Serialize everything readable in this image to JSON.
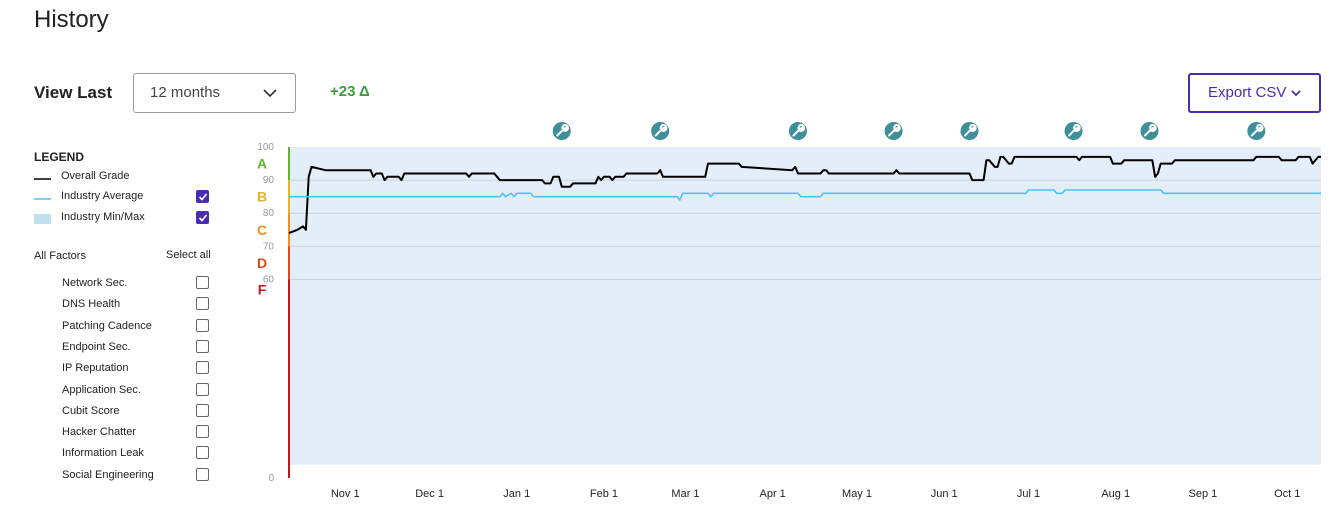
{
  "page": {
    "title": "History"
  },
  "controls": {
    "view_last_label": "View Last",
    "period_value": "12 months",
    "score_delta": "+23 Δ",
    "export_label": "Export CSV"
  },
  "legend": {
    "title": "LEGEND",
    "items": [
      {
        "label": "Overall Grade",
        "color": "#000000",
        "checkbox": null
      },
      {
        "label": "Industry Average",
        "color": "#4fc3f7",
        "checkbox": true
      },
      {
        "label": "Industry Min/Max",
        "color": "#bfe0ef",
        "checkbox": true
      }
    ]
  },
  "factors": {
    "header": "All Factors",
    "select_all": "Select all",
    "items": [
      "Network Sec.",
      "DNS Health",
      "Patching Cadence",
      "Endpoint Sec.",
      "IP Reputation",
      "Application Sec.",
      "Cubit Score",
      "Hacker Chatter",
      "Information Leak",
      "Social Engineering"
    ]
  },
  "chart_data": {
    "type": "line",
    "y_ticks": [
      100,
      90,
      80,
      70,
      60,
      0
    ],
    "ylim": [
      0,
      100
    ],
    "x_start": "2023-10-12",
    "x_end": "2024-10-13",
    "x_tick_labels": [
      "Nov 1",
      "Dec 1",
      "Jan 1",
      "Feb 1",
      "Mar 1",
      "Apr 1",
      "May 1",
      "Jun 1",
      "Jul 1",
      "Aug 1",
      "Sep 1",
      "Oct 1"
    ],
    "x_tick_dates": [
      "2023-11-01",
      "2023-12-01",
      "2024-01-01",
      "2024-02-01",
      "2024-03-01",
      "2024-04-01",
      "2024-05-01",
      "2024-06-01",
      "2024-07-01",
      "2024-08-01",
      "2024-09-01",
      "2024-10-01"
    ],
    "grade_bands": [
      {
        "grade": "A",
        "from": 90,
        "to": 100,
        "color": "#5cb82e"
      },
      {
        "grade": "B",
        "from": 80,
        "to": 90,
        "color": "#e6b32a"
      },
      {
        "grade": "C",
        "from": 70,
        "to": 80,
        "color": "#f09020"
      },
      {
        "grade": "D",
        "from": 60,
        "to": 70,
        "color": "#e04a1a"
      },
      {
        "grade": "F",
        "from": 0,
        "to": 60,
        "color": "#c01818"
      }
    ],
    "event_markers": [
      "2024-01-17",
      "2024-02-21",
      "2024-04-10",
      "2024-05-14",
      "2024-06-10",
      "2024-07-17",
      "2024-08-13",
      "2024-09-20"
    ],
    "event_icon": "wrench-icon",
    "event_color": "#3f8f9a",
    "industry_min_max": {
      "name": "Industry Min/Max",
      "min": [
        [
          "2023-10-12",
          4
        ],
        [
          "2024-10-13",
          4
        ]
      ],
      "max": [
        [
          "2023-10-12",
          100
        ],
        [
          "2024-10-13",
          100
        ]
      ],
      "color": "#e4eef8"
    },
    "series": [
      {
        "name": "Overall Grade",
        "color": "#000000",
        "points": [
          [
            "2023-10-12",
            74
          ],
          [
            "2023-10-15",
            75
          ],
          [
            "2023-10-17",
            76
          ],
          [
            "2023-10-18",
            75
          ],
          [
            "2023-10-19",
            91
          ],
          [
            "2023-10-20",
            94
          ],
          [
            "2023-10-25",
            93
          ],
          [
            "2023-11-10",
            93
          ],
          [
            "2023-11-11",
            91
          ],
          [
            "2023-11-12",
            92
          ],
          [
            "2023-11-14",
            92
          ],
          [
            "2023-11-15",
            90
          ],
          [
            "2023-11-16",
            91
          ],
          [
            "2023-11-20",
            91
          ],
          [
            "2023-11-21",
            90
          ],
          [
            "2023-11-22",
            92
          ],
          [
            "2023-12-14",
            92
          ],
          [
            "2023-12-15",
            91
          ],
          [
            "2023-12-16",
            92
          ],
          [
            "2023-12-24",
            92
          ],
          [
            "2023-12-25",
            91
          ],
          [
            "2023-12-26",
            90
          ],
          [
            "2024-01-10",
            90
          ],
          [
            "2024-01-11",
            89
          ],
          [
            "2024-01-13",
            89
          ],
          [
            "2024-01-14",
            91
          ],
          [
            "2024-01-16",
            91
          ],
          [
            "2024-01-17",
            88
          ],
          [
            "2024-01-20",
            88
          ],
          [
            "2024-01-21",
            89
          ],
          [
            "2024-01-29",
            89
          ],
          [
            "2024-01-30",
            91
          ],
          [
            "2024-01-31",
            90
          ],
          [
            "2024-02-01",
            91
          ],
          [
            "2024-02-03",
            91
          ],
          [
            "2024-02-04",
            90
          ],
          [
            "2024-02-05",
            91
          ],
          [
            "2024-02-08",
            91
          ],
          [
            "2024-02-09",
            92
          ],
          [
            "2024-02-20",
            92
          ],
          [
            "2024-02-21",
            93
          ],
          [
            "2024-02-22",
            91
          ],
          [
            "2024-03-08",
            91
          ],
          [
            "2024-03-09",
            95
          ],
          [
            "2024-03-20",
            95
          ],
          [
            "2024-03-21",
            94
          ],
          [
            "2024-04-08",
            93
          ],
          [
            "2024-04-09",
            94
          ],
          [
            "2024-04-10",
            92
          ],
          [
            "2024-04-18",
            92
          ],
          [
            "2024-04-19",
            93
          ],
          [
            "2024-04-20",
            93
          ],
          [
            "2024-04-21",
            92
          ],
          [
            "2024-05-14",
            92
          ],
          [
            "2024-05-15",
            93
          ],
          [
            "2024-05-16",
            92
          ],
          [
            "2024-06-10",
            92
          ],
          [
            "2024-06-11",
            90
          ],
          [
            "2024-06-15",
            90
          ],
          [
            "2024-06-16",
            96
          ],
          [
            "2024-06-17",
            96
          ],
          [
            "2024-06-19",
            94
          ],
          [
            "2024-06-20",
            94
          ],
          [
            "2024-06-21",
            97
          ],
          [
            "2024-06-22",
            97
          ],
          [
            "2024-06-24",
            95
          ],
          [
            "2024-06-25",
            95
          ],
          [
            "2024-06-26",
            97
          ],
          [
            "2024-07-18",
            97
          ],
          [
            "2024-07-19",
            96
          ],
          [
            "2024-07-20",
            97
          ],
          [
            "2024-07-30",
            97
          ],
          [
            "2024-07-31",
            95
          ],
          [
            "2024-08-03",
            95
          ],
          [
            "2024-08-04",
            96
          ],
          [
            "2024-08-14",
            96
          ],
          [
            "2024-08-15",
            91
          ],
          [
            "2024-08-16",
            92
          ],
          [
            "2024-08-17",
            95
          ],
          [
            "2024-08-21",
            95
          ],
          [
            "2024-08-22",
            96
          ],
          [
            "2024-09-19",
            96
          ],
          [
            "2024-09-20",
            97
          ],
          [
            "2024-09-28",
            97
          ],
          [
            "2024-09-29",
            96
          ],
          [
            "2024-10-04",
            96
          ],
          [
            "2024-10-05",
            97
          ],
          [
            "2024-10-09",
            97
          ],
          [
            "2024-10-10",
            95
          ],
          [
            "2024-10-11",
            96
          ],
          [
            "2024-10-12",
            97
          ],
          [
            "2024-10-13",
            97
          ]
        ]
      },
      {
        "name": "Industry Average",
        "color": "#4fc3f7",
        "points": [
          [
            "2023-10-12",
            85
          ],
          [
            "2023-12-26",
            85
          ],
          [
            "2023-12-27",
            86
          ],
          [
            "2023-12-28",
            85
          ],
          [
            "2023-12-30",
            86
          ],
          [
            "2023-12-31",
            85
          ],
          [
            "2024-01-01",
            86
          ],
          [
            "2024-01-06",
            86
          ],
          [
            "2024-01-07",
            85
          ],
          [
            "2024-02-27",
            85
          ],
          [
            "2024-02-28",
            84
          ],
          [
            "2024-02-29",
            86
          ],
          [
            "2024-03-09",
            86
          ],
          [
            "2024-03-10",
            85
          ],
          [
            "2024-03-11",
            86
          ],
          [
            "2024-04-10",
            86
          ],
          [
            "2024-04-11",
            85
          ],
          [
            "2024-04-18",
            85
          ],
          [
            "2024-04-19",
            86
          ],
          [
            "2024-06-30",
            86
          ],
          [
            "2024-07-01",
            87
          ],
          [
            "2024-07-10",
            87
          ],
          [
            "2024-07-11",
            86
          ],
          [
            "2024-07-13",
            86
          ],
          [
            "2024-07-14",
            87
          ],
          [
            "2024-08-17",
            87
          ],
          [
            "2024-08-18",
            86
          ],
          [
            "2024-10-13",
            86
          ]
        ]
      }
    ]
  }
}
